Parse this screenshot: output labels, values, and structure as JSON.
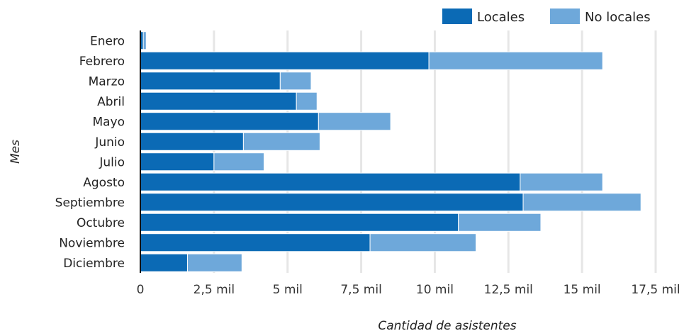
{
  "chart_data": {
    "type": "bar",
    "orientation": "horizontal",
    "stacked": true,
    "categories": [
      "Enero",
      "Febrero",
      "Marzo",
      "Abril",
      "Mayo",
      "Junio",
      "Julio",
      "Agosto",
      "Septiembre",
      "Octubre",
      "Noviembre",
      "Diciembre"
    ],
    "series": [
      {
        "name": "Locales",
        "color": "#0b6ab5",
        "values": [
          100,
          9800,
          4750,
          5300,
          6050,
          3500,
          2500,
          12900,
          13000,
          10800,
          7800,
          1600
        ]
      },
      {
        "name": "No locales",
        "color": "#6ea8da",
        "values": [
          100,
          5900,
          1050,
          700,
          2450,
          2600,
          1700,
          2800,
          4000,
          2800,
          3600,
          1850
        ]
      }
    ],
    "xlabel": "Cantidad de asistentes",
    "ylabel": "Mes",
    "xlim": [
      0,
      17500
    ],
    "xticks": [
      0,
      2500,
      5000,
      7500,
      10000,
      12500,
      15000,
      17500
    ],
    "xtick_labels": [
      "0",
      "2,5 mil",
      "5 mil",
      "7,5 mil",
      "10 mil",
      "12,5 mil",
      "15 mil",
      "17,5 mil"
    ],
    "grid": true,
    "legend_position": "top-right"
  }
}
